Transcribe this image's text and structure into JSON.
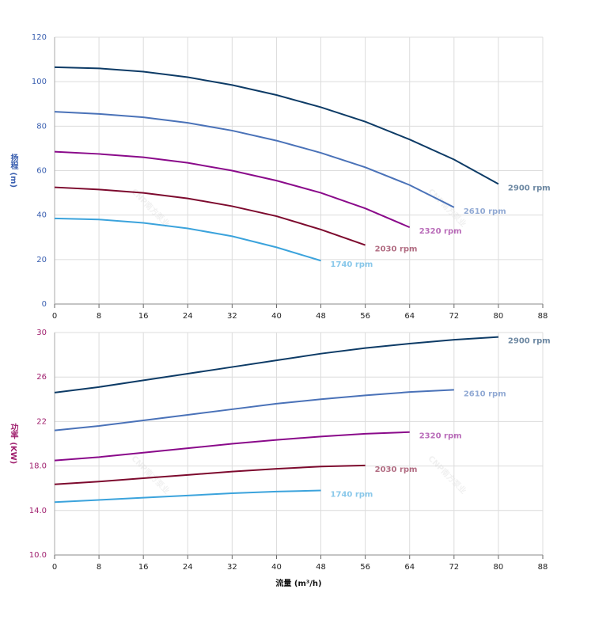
{
  "chart_data": [
    {
      "type": "line",
      "ylabel": "扬程 (m)",
      "watermark": "CNP南方泵业",
      "x": [
        0,
        8,
        16,
        24,
        32,
        40,
        48,
        56,
        64,
        72,
        80
      ],
      "xlim": [
        0,
        88
      ],
      "xticks": [
        0,
        8,
        16,
        24,
        32,
        40,
        48,
        56,
        64,
        72,
        80,
        88
      ],
      "ylim": [
        0,
        120
      ],
      "yticks": [
        0,
        20,
        40,
        60,
        80,
        100,
        120
      ],
      "grid": true,
      "series": [
        {
          "name": "2900 rpm",
          "color": "#0d3b66",
          "values": [
            106.5,
            106,
            104.5,
            102,
            98.5,
            94,
            88.5,
            82,
            74,
            65,
            54
          ]
        },
        {
          "name": "2610 rpm",
          "color": "#4a72b8",
          "values": [
            86.5,
            85.5,
            84,
            81.5,
            78,
            73.5,
            68,
            61.5,
            53.5,
            43.5,
            null
          ]
        },
        {
          "name": "2320 rpm",
          "color": "#8a0a8a",
          "values": [
            68.5,
            67.5,
            66,
            63.5,
            60,
            55.5,
            50,
            43,
            34.5,
            null,
            null
          ]
        },
        {
          "name": "2030 rpm",
          "color": "#7d0a2e",
          "values": [
            52.5,
            51.5,
            50,
            47.5,
            44,
            39.5,
            33.5,
            26.5,
            null,
            null,
            null
          ]
        },
        {
          "name": "1740 rpm",
          "color": "#3ba3dc",
          "values": [
            38.5,
            38,
            36.5,
            34,
            30.5,
            25.5,
            19.5,
            null,
            null,
            null,
            null
          ]
        }
      ]
    },
    {
      "type": "line",
      "ylabel": "功率 (KW)",
      "xlabel": "流量 (m³/h)",
      "watermark": "CNP南方泵业",
      "x": [
        0,
        8,
        16,
        24,
        32,
        40,
        48,
        56,
        64,
        72,
        80
      ],
      "xlim": [
        0,
        88
      ],
      "xticks": [
        0,
        8,
        16,
        24,
        32,
        40,
        48,
        56,
        64,
        72,
        80,
        88
      ],
      "ylim": [
        10,
        30
      ],
      "yticks": [
        {
          "value": 10,
          "label": "10.0"
        },
        {
          "value": 14,
          "label": "14.0"
        },
        {
          "value": 18,
          "label": "18.0"
        },
        22,
        26,
        30
      ],
      "grid": true,
      "series": [
        {
          "name": "2900 rpm",
          "color": "#0d3b66",
          "values": [
            24.6,
            25.1,
            25.7,
            26.3,
            26.9,
            27.5,
            28.1,
            28.6,
            29.0,
            29.35,
            29.6
          ]
        },
        {
          "name": "2610 rpm",
          "color": "#4a72b8",
          "values": [
            21.2,
            21.6,
            22.1,
            22.6,
            23.1,
            23.6,
            24.0,
            24.35,
            24.65,
            24.85,
            null
          ]
        },
        {
          "name": "2320 rpm",
          "color": "#8a0a8a",
          "values": [
            18.5,
            18.8,
            19.2,
            19.6,
            20.0,
            20.35,
            20.65,
            20.9,
            21.05,
            null,
            null
          ]
        },
        {
          "name": "2030 rpm",
          "color": "#7d0a2e",
          "values": [
            16.35,
            16.6,
            16.9,
            17.2,
            17.5,
            17.75,
            17.95,
            18.05,
            null,
            null,
            null
          ]
        },
        {
          "name": "1740 rpm",
          "color": "#3ba3dc",
          "values": [
            14.75,
            14.95,
            15.15,
            15.35,
            15.55,
            15.7,
            15.8,
            null,
            null,
            null,
            null
          ]
        }
      ]
    }
  ]
}
